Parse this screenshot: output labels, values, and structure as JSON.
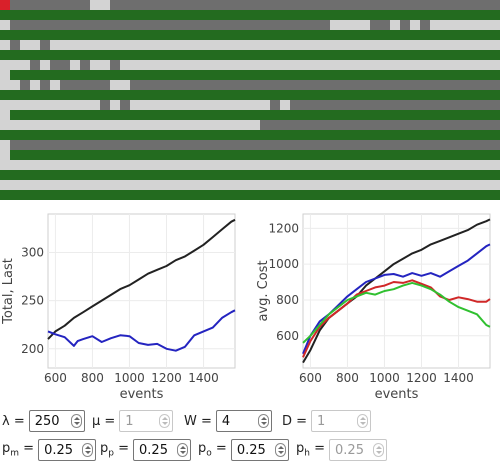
{
  "colors": {
    "road": "#d3d3d3",
    "queued": "#6e6e6e",
    "served": "#236b1f",
    "highlight": "#d9202a"
  },
  "chart_data": [
    {
      "type": "line",
      "xlabel": "events",
      "ylabel": "Total, Last",
      "xlim": [
        560,
        1570
      ],
      "ylim": [
        180,
        340
      ],
      "xticks": [
        "600",
        "800",
        "1000",
        "1200",
        "1400"
      ],
      "yticks": [
        "200",
        "250",
        "300"
      ],
      "series": [
        {
          "color": "#222222",
          "x": [
            560,
            600,
            650,
            700,
            750,
            800,
            850,
            900,
            950,
            1000,
            1050,
            1100,
            1150,
            1200,
            1250,
            1300,
            1350,
            1400,
            1450,
            1500,
            1550,
            1570
          ],
          "y": [
            210,
            218,
            224,
            232,
            238,
            244,
            250,
            256,
            262,
            266,
            272,
            278,
            282,
            286,
            292,
            296,
            302,
            308,
            316,
            324,
            332,
            334
          ]
        },
        {
          "color": "#2424c0",
          "x": [
            560,
            600,
            650,
            700,
            720,
            750,
            800,
            850,
            900,
            950,
            1000,
            1050,
            1100,
            1150,
            1200,
            1250,
            1300,
            1350,
            1400,
            1450,
            1500,
            1550,
            1570
          ],
          "y": [
            218,
            215,
            212,
            203,
            208,
            210,
            213,
            207,
            211,
            214,
            213,
            206,
            204,
            205,
            200,
            198,
            202,
            214,
            218,
            222,
            232,
            238,
            240
          ]
        }
      ]
    },
    {
      "type": "line",
      "xlabel": "events",
      "ylabel": "avg. Cost",
      "xlim": [
        560,
        1570
      ],
      "ylim": [
        420,
        1280
      ],
      "xticks": [
        "600",
        "800",
        "1000",
        "1200",
        "1400"
      ],
      "yticks": [
        "600",
        "800",
        "1000",
        "1200"
      ],
      "series": [
        {
          "color": "#222222",
          "x": [
            560,
            600,
            650,
            700,
            750,
            800,
            850,
            900,
            950,
            1000,
            1050,
            1100,
            1150,
            1200,
            1250,
            1300,
            1350,
            1400,
            1450,
            1500,
            1550,
            1570
          ],
          "y": [
            450,
            520,
            630,
            700,
            740,
            780,
            820,
            880,
            920,
            960,
            1000,
            1030,
            1060,
            1080,
            1110,
            1130,
            1150,
            1170,
            1190,
            1220,
            1240,
            1250
          ]
        },
        {
          "color": "#2424c0",
          "x": [
            560,
            600,
            650,
            700,
            750,
            800,
            850,
            900,
            950,
            1000,
            1050,
            1100,
            1150,
            1200,
            1250,
            1300,
            1350,
            1400,
            1450,
            1500,
            1550,
            1570
          ],
          "y": [
            500,
            600,
            680,
            720,
            770,
            820,
            860,
            900,
            920,
            940,
            945,
            930,
            950,
            935,
            950,
            930,
            960,
            990,
            1020,
            1060,
            1100,
            1110
          ]
        },
        {
          "color": "#d02828",
          "x": [
            560,
            600,
            650,
            700,
            750,
            800,
            850,
            900,
            950,
            1000,
            1050,
            1100,
            1150,
            1200,
            1250,
            1300,
            1350,
            1400,
            1450,
            1500,
            1550,
            1570
          ],
          "y": [
            480,
            570,
            650,
            700,
            740,
            780,
            830,
            850,
            870,
            880,
            900,
            895,
            910,
            890,
            870,
            820,
            800,
            815,
            805,
            790,
            790,
            805
          ]
        },
        {
          "color": "#30c030",
          "x": [
            560,
            600,
            650,
            700,
            750,
            800,
            850,
            900,
            950,
            1000,
            1050,
            1100,
            1150,
            1200,
            1250,
            1300,
            1350,
            1400,
            1450,
            1500,
            1550,
            1570
          ],
          "y": [
            560,
            600,
            660,
            720,
            760,
            800,
            820,
            840,
            830,
            850,
            860,
            880,
            895,
            880,
            860,
            830,
            790,
            760,
            740,
            720,
            660,
            650
          ]
        }
      ]
    }
  ],
  "controls": {
    "lambda": {
      "label": "λ =",
      "value": "250",
      "disabled": false
    },
    "mu": {
      "label": "μ =",
      "value": "1",
      "disabled": true
    },
    "W": {
      "label": "W =",
      "value": "4",
      "disabled": false
    },
    "D": {
      "label": "D =",
      "value": "1",
      "disabled": true
    },
    "pm": {
      "label": "p",
      "sub": "m",
      "eq": " =",
      "value": "0.25",
      "disabled": false
    },
    "pp": {
      "label": "p",
      "sub": "p",
      "eq": " =",
      "value": "0.25",
      "disabled": false
    },
    "po": {
      "label": "p",
      "sub": "o",
      "eq": " =",
      "value": "0.25",
      "disabled": false
    },
    "ph": {
      "label": "p",
      "sub": "h",
      "eq": " =",
      "value": "0.25",
      "disabled": true
    }
  }
}
